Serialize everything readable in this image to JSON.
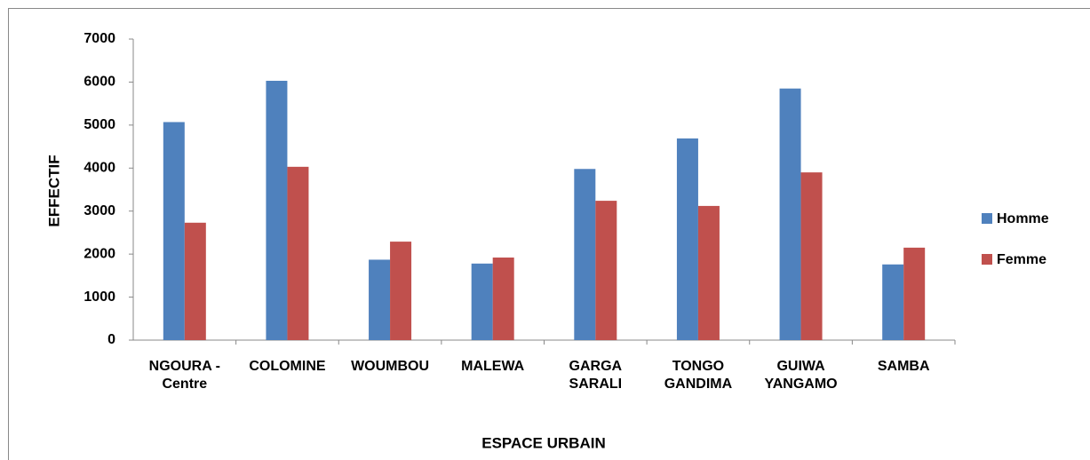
{
  "chart_data": {
    "type": "bar",
    "categories": [
      "NGOURA - Centre",
      "COLOMINE",
      "WOUMBOU",
      "MALEWA",
      "GARGA SARALI",
      "TONGO GANDIMA",
      "GUIWA YANGAMO",
      "SAMBA"
    ],
    "series": [
      {
        "name": "Homme",
        "color": "#4f81bd",
        "values": [
          5070,
          6030,
          1870,
          1780,
          3980,
          4690,
          5850,
          1760
        ]
      },
      {
        "name": "Femme",
        "color": "#c0504d",
        "values": [
          2730,
          4030,
          2290,
          1920,
          3240,
          3120,
          3900,
          2150
        ]
      }
    ],
    "x_label": "ESPACE URBAIN",
    "y_label": "EFFECTIF",
    "ylim": [
      0,
      7000
    ],
    "yticks": [
      0,
      1000,
      2000,
      3000,
      4000,
      5000,
      6000,
      7000
    ],
    "grid": false,
    "legend": "right"
  }
}
